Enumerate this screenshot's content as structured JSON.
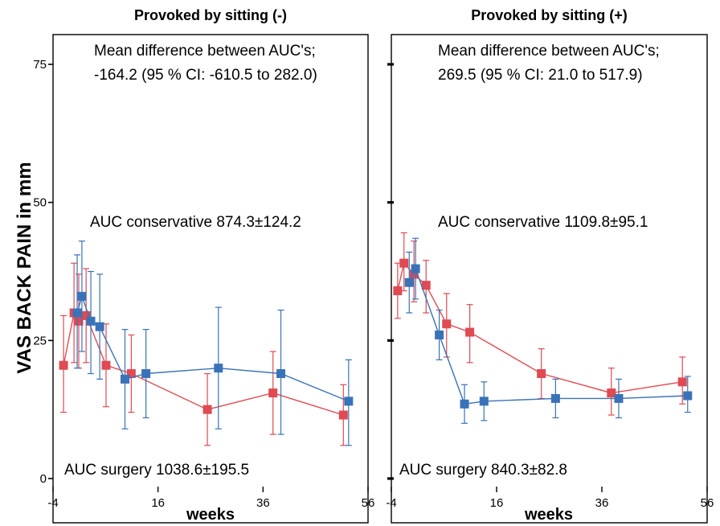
{
  "chart_data": {
    "type": "line",
    "ylabel": "VAS BACK PAIN in mm",
    "xlabel": "weeks",
    "xlim": [
      -4,
      56
    ],
    "ylim": [
      0,
      80
    ],
    "x_ticks": [
      "-4",
      "16",
      "36",
      "56"
    ],
    "y_ticks": [
      "0",
      "25",
      "50",
      "75"
    ],
    "colors": {
      "surgery": "#3a72b8",
      "conservative": "#e04a52"
    },
    "panels": [
      {
        "title": "Provoked by sitting (-)",
        "annotation_line1": "Mean difference between AUC's;",
        "annotation_line2": "-164.2 (95 % CI: -610.5 to 282.0)",
        "auc_conservative": "AUC conservative 874.3±124.2",
        "auc_surgery": "AUC surgery 1038.6±195.5",
        "series": [
          {
            "key": "conservative",
            "points": [
              {
                "x": -2,
                "y": 20.5,
                "lo": 12,
                "hi": 29.5
              },
              {
                "x": 0,
                "y": 30,
                "lo": 21,
                "hi": 39
              },
              {
                "x": 0.9,
                "y": 28.5,
                "lo": 20,
                "hi": 37
              },
              {
                "x": 2.3,
                "y": 29.5,
                "lo": 21,
                "hi": 38
              },
              {
                "x": 6.1,
                "y": 20.5,
                "lo": 13,
                "hi": 28
              },
              {
                "x": 10.9,
                "y": 19,
                "lo": 12,
                "hi": 26
              },
              {
                "x": 25.4,
                "y": 12.5,
                "lo": 6,
                "hi": 19
              },
              {
                "x": 37.9,
                "y": 15.5,
                "lo": 8,
                "hi": 23
              },
              {
                "x": 51.3,
                "y": 11.5,
                "lo": 6,
                "hi": 17
              }
            ]
          },
          {
            "key": "surgery",
            "points": [
              {
                "x": 0.6,
                "y": 30,
                "lo": 20,
                "hi": 40.5
              },
              {
                "x": 1.5,
                "y": 33,
                "lo": 23,
                "hi": 43
              },
              {
                "x": 3.2,
                "y": 28.5,
                "lo": 19,
                "hi": 37.5
              },
              {
                "x": 4.9,
                "y": 27.5,
                "lo": 18,
                "hi": 37
              },
              {
                "x": 9.7,
                "y": 18,
                "lo": 9,
                "hi": 27
              },
              {
                "x": 13.7,
                "y": 19,
                "lo": 11,
                "hi": 27
              },
              {
                "x": 27.5,
                "y": 20,
                "lo": 9,
                "hi": 31
              },
              {
                "x": 39.4,
                "y": 19,
                "lo": 8,
                "hi": 30.5
              },
              {
                "x": 52.3,
                "y": 14,
                "lo": 6,
                "hi": 21.5
              }
            ]
          }
        ]
      },
      {
        "title": "Provoked by sitting (+)",
        "annotation_line1": "Mean difference between AUC's;",
        "annotation_line2": "269.5 (95 % CI: 21.0 to 517.9)",
        "auc_conservative": "AUC conservative 1109.8±95.1",
        "auc_surgery": "AUC surgery 840.3±82.8",
        "series": [
          {
            "key": "conservative",
            "points": [
              {
                "x": -2.8,
                "y": 34,
                "lo": 29,
                "hi": 39
              },
              {
                "x": -1.6,
                "y": 39,
                "lo": 34,
                "hi": 44.5
              },
              {
                "x": 0.3,
                "y": 37,
                "lo": 32,
                "hi": 43
              },
              {
                "x": 2.6,
                "y": 35,
                "lo": 30,
                "hi": 39.5
              },
              {
                "x": 6.5,
                "y": 28,
                "lo": 22,
                "hi": 33.5
              },
              {
                "x": 10.9,
                "y": 26.5,
                "lo": 21,
                "hi": 31.5
              },
              {
                "x": 24.5,
                "y": 19,
                "lo": 14.5,
                "hi": 23.5
              },
              {
                "x": 37.8,
                "y": 15.5,
                "lo": 11.5,
                "hi": 20
              },
              {
                "x": 51.3,
                "y": 17.5,
                "lo": 13.5,
                "hi": 22
              }
            ]
          },
          {
            "key": "surgery",
            "points": [
              {
                "x": -0.6,
                "y": 35.5,
                "lo": 30,
                "hi": 41
              },
              {
                "x": 0.6,
                "y": 38,
                "lo": 32.5,
                "hi": 43.5
              },
              {
                "x": 5.1,
                "y": 26,
                "lo": 21.5,
                "hi": 30.5
              },
              {
                "x": 9.9,
                "y": 13.5,
                "lo": 10,
                "hi": 17
              },
              {
                "x": 13.6,
                "y": 14,
                "lo": 10.5,
                "hi": 17.5
              },
              {
                "x": 27.2,
                "y": 14.5,
                "lo": 11,
                "hi": 18
              },
              {
                "x": 39.2,
                "y": 14.5,
                "lo": 11,
                "hi": 18
              },
              {
                "x": 52.3,
                "y": 15,
                "lo": 12,
                "hi": 18.5
              }
            ]
          }
        ]
      }
    ]
  }
}
